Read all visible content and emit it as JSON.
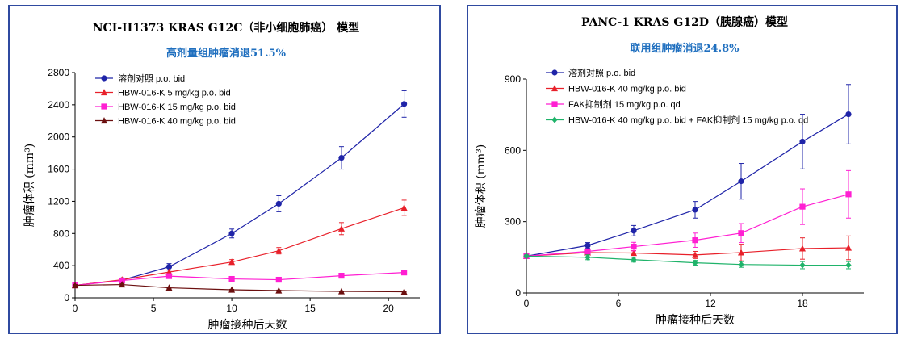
{
  "chart_data": [
    {
      "type": "line",
      "title": "NCI-H1373 KRAS G12C（非小细胞肺癌） 模型",
      "subtitle": "高剂量组肿瘤消退51.5%",
      "xlabel": "肿瘤接种后天数",
      "ylabel": "肿瘤体积 (mm³)",
      "xlim": [
        0,
        22
      ],
      "ylim": [
        0,
        2800
      ],
      "xticks": [
        0,
        5,
        10,
        15,
        20
      ],
      "yticks": [
        0,
        400,
        800,
        1200,
        1600,
        2000,
        2400,
        2800
      ],
      "legend_position": "top-left",
      "series": [
        {
          "name": "溶剂对照 p.o. bid",
          "color": "#1f24a8",
          "marker": "circle",
          "x": [
            0,
            3,
            6,
            10,
            13,
            17,
            21
          ],
          "y": [
            155,
            220,
            385,
            800,
            1170,
            1740,
            2410
          ],
          "err": [
            15,
            20,
            40,
            55,
            100,
            140,
            165
          ]
        },
        {
          "name": "HBW-016-K 5 mg/kg p.o. bid",
          "color": "#e8202a",
          "marker": "triangle",
          "x": [
            0,
            3,
            6,
            10,
            13,
            17,
            21
          ],
          "y": [
            155,
            225,
            320,
            445,
            585,
            860,
            1120
          ],
          "err": [
            15,
            20,
            25,
            30,
            40,
            75,
            95
          ]
        },
        {
          "name": "HBW-016-K 15 mg/kg p.o. bid",
          "color": "#ff1fd2",
          "marker": "square",
          "x": [
            0,
            3,
            6,
            10,
            13,
            17,
            21
          ],
          "y": [
            155,
            215,
            270,
            235,
            225,
            275,
            315
          ],
          "err": [
            10,
            15,
            20,
            15,
            15,
            20,
            20
          ]
        },
        {
          "name": "HBW-016-K 40 mg/kg p.o. bid",
          "color": "#6b0f0f",
          "marker": "triangle",
          "x": [
            0,
            3,
            6,
            10,
            13,
            17,
            21
          ],
          "y": [
            155,
            165,
            125,
            100,
            90,
            80,
            75
          ],
          "err": [
            10,
            10,
            8,
            6,
            6,
            5,
            5
          ]
        }
      ]
    },
    {
      "type": "line",
      "title": "PANC-1 KRAS G12D（胰腺癌）模型",
      "subtitle": "联用组肿瘤消退24.8%",
      "xlabel": "肿瘤接种后天数",
      "ylabel": "肿瘤体积 (mm³)",
      "xlim": [
        0,
        22
      ],
      "ylim": [
        0,
        900
      ],
      "xticks": [
        0,
        6,
        12,
        18
      ],
      "yticks": [
        0,
        300,
        600,
        900
      ],
      "legend_position": "top-left",
      "series": [
        {
          "name": "溶剂对照 p.o. bid",
          "color": "#1f24a8",
          "marker": "circle",
          "x": [
            0,
            4,
            7,
            11,
            14,
            18,
            21
          ],
          "y": [
            155,
            200,
            262,
            350,
            470,
            637,
            752
          ],
          "err": [
            5,
            12,
            22,
            35,
            75,
            115,
            125
          ]
        },
        {
          "name": "HBW-016-K 40 mg/kg p.o. bid",
          "color": "#e8202a",
          "marker": "triangle",
          "x": [
            0,
            4,
            7,
            11,
            14,
            18,
            21
          ],
          "y": [
            155,
            170,
            168,
            160,
            170,
            187,
            190
          ],
          "err": [
            5,
            8,
            10,
            15,
            35,
            45,
            50
          ]
        },
        {
          "name": "FAK抑制剂 15 mg/kg p.o. qd",
          "color": "#ff1fd2",
          "marker": "square",
          "x": [
            0,
            4,
            7,
            11,
            14,
            18,
            21
          ],
          "y": [
            155,
            175,
            195,
            222,
            252,
            363,
            415
          ],
          "err": [
            5,
            10,
            18,
            30,
            40,
            75,
            100
          ]
        },
        {
          "name": "HBW-016-K 40 mg/kg p.o. bid + FAK抑制剂 15 mg/kg p.o. qd",
          "color": "#1fb36a",
          "marker": "diamond",
          "x": [
            0,
            4,
            7,
            11,
            14,
            18,
            21
          ],
          "y": [
            155,
            150,
            140,
            127,
            120,
            117,
            117
          ],
          "err": [
            5,
            10,
            10,
            10,
            12,
            15,
            15
          ]
        }
      ]
    }
  ]
}
